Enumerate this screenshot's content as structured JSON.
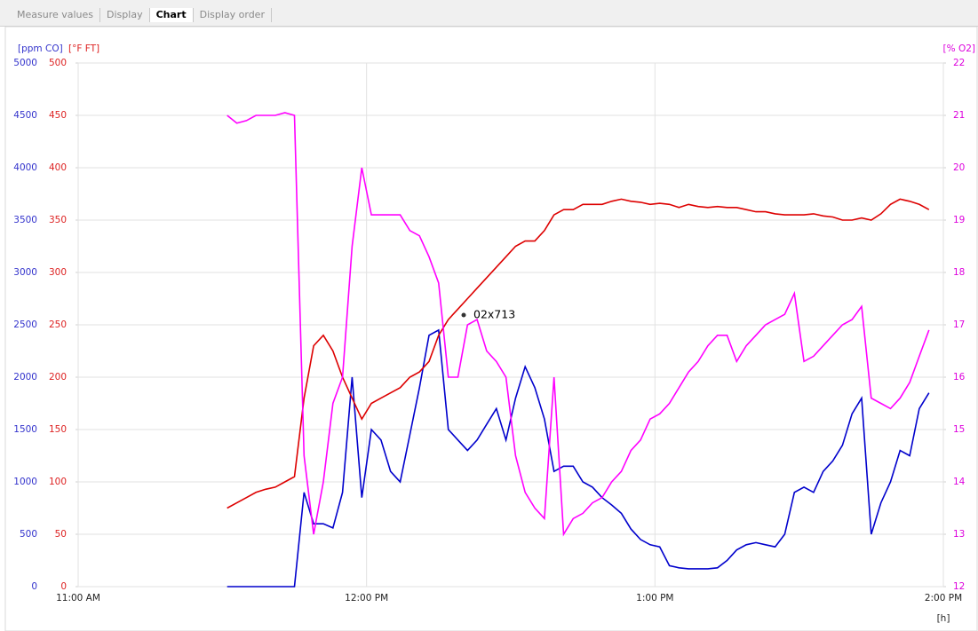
{
  "tabs": [
    {
      "label": "Measure values"
    },
    {
      "label": "Display"
    },
    {
      "label": "Chart",
      "active": true
    },
    {
      "label": "Display order"
    }
  ],
  "chart_data": {
    "type": "line",
    "ylabel": "[ppm CO]",
    "y2label": "[°F FT]",
    "y3label": "[% O2]",
    "xlabel": "[h]",
    "annotation": "02x713",
    "xlim": [
      "11:00 AM",
      "2:00 PM"
    ],
    "xticks": [
      "11:00 AM",
      "12:00 PM",
      "1:00 PM",
      "2:00 PM"
    ],
    "ylim": [
      0,
      5000
    ],
    "yticks": [
      0,
      500,
      1000,
      1500,
      2000,
      2500,
      3000,
      3500,
      4000,
      4500,
      5000
    ],
    "y2lim": [
      0,
      500
    ],
    "y2ticks": [
      0,
      50,
      100,
      150,
      200,
      250,
      300,
      350,
      400,
      450,
      500
    ],
    "y3lim": [
      12,
      22
    ],
    "y3ticks": [
      12,
      13,
      14,
      15,
      16,
      17,
      18,
      19,
      20,
      21,
      22
    ],
    "grid": true,
    "x": [
      "11:31 AM",
      "11:33 AM",
      "11:35 AM",
      "11:37 AM",
      "11:39 AM",
      "11:41 AM",
      "11:43 AM",
      "11:45 AM",
      "11:47 AM",
      "11:49 AM",
      "11:51 AM",
      "11:53 AM",
      "11:55 AM",
      "11:57 AM",
      "11:59 AM",
      "12:01 PM",
      "12:03 PM",
      "12:05 PM",
      "12:07 PM",
      "12:09 PM",
      "12:11 PM",
      "12:13 PM",
      "12:15 PM",
      "12:17 PM",
      "12:19 PM",
      "12:21 PM",
      "12:23 PM",
      "12:25 PM",
      "12:27 PM",
      "12:29 PM",
      "12:31 PM",
      "12:33 PM",
      "12:35 PM",
      "12:37 PM",
      "12:39 PM",
      "12:41 PM",
      "12:43 PM",
      "12:45 PM",
      "12:47 PM",
      "12:49 PM",
      "12:51 PM",
      "12:53 PM",
      "12:55 PM",
      "12:57 PM",
      "12:59 PM",
      "1:01 PM",
      "1:03 PM",
      "1:05 PM",
      "1:07 PM",
      "1:09 PM",
      "1:11 PM",
      "1:13 PM",
      "1:15 PM",
      "1:17 PM",
      "1:19 PM",
      "1:21 PM",
      "1:23 PM",
      "1:25 PM",
      "1:27 PM",
      "1:29 PM",
      "1:31 PM",
      "1:33 PM",
      "1:35 PM",
      "1:37 PM",
      "1:39 PM",
      "1:41 PM",
      "1:43 PM",
      "1:45 PM",
      "1:47 PM",
      "1:49 PM",
      "1:51 PM",
      "1:53 PM",
      "1:55 PM",
      "1:57 PM"
    ],
    "series": [
      {
        "axis": "y",
        "color": "#0000cc",
        "values": [
          0,
          0,
          0,
          0,
          0,
          0,
          0,
          0,
          900,
          600,
          600,
          560,
          900,
          2000,
          850,
          1500,
          1400,
          1100,
          1000,
          1450,
          1900,
          2400,
          2450,
          1500,
          1400,
          1300,
          1400,
          1550,
          1700,
          1400,
          1800,
          2100,
          1900,
          1600,
          1100,
          1150,
          1150,
          1000,
          950,
          850,
          780,
          700,
          550,
          450,
          400,
          380,
          200,
          180,
          170,
          170,
          170,
          180,
          250,
          350,
          400,
          420,
          400,
          380,
          500,
          900,
          950,
          900,
          1100,
          1200,
          1350,
          1650,
          1800,
          500,
          800,
          1000,
          1300,
          1250,
          1700,
          1850
        ]
      },
      {
        "axis": "y2",
        "color": "#dd0000",
        "values": [
          75,
          80,
          85,
          90,
          93,
          95,
          100,
          105,
          180,
          230,
          240,
          225,
          200,
          180,
          160,
          175,
          180,
          185,
          190,
          200,
          205,
          215,
          240,
          255,
          265,
          275,
          285,
          295,
          305,
          315,
          325,
          330,
          330,
          340,
          355,
          360,
          360,
          365,
          365,
          365,
          368,
          370,
          368,
          367,
          365,
          366,
          365,
          362,
          365,
          363,
          362,
          363,
          362,
          362,
          360,
          358,
          358,
          356,
          355,
          355,
          355,
          356,
          354,
          353,
          350,
          350,
          352,
          350,
          356,
          365,
          370,
          368,
          365,
          360
        ]
      },
      {
        "axis": "y3",
        "color": "#ff00ff",
        "values": [
          21.0,
          20.85,
          20.9,
          21.0,
          21.0,
          21.0,
          21.05,
          21.0,
          14.5,
          13.0,
          14.0,
          15.5,
          16.0,
          18.5,
          20.0,
          19.1,
          19.1,
          19.1,
          19.1,
          18.8,
          18.7,
          18.3,
          17.8,
          16.0,
          16.0,
          17.0,
          17.1,
          16.5,
          16.3,
          16.0,
          14.5,
          13.8,
          13.5,
          13.3,
          16.0,
          13.0,
          13.3,
          13.4,
          13.6,
          13.7,
          14.0,
          14.2,
          14.6,
          14.8,
          15.2,
          15.3,
          15.5,
          15.8,
          16.1,
          16.3,
          16.6,
          16.8,
          16.8,
          16.3,
          16.6,
          16.8,
          17.0,
          17.1,
          17.2,
          17.6,
          16.3,
          16.4,
          16.6,
          16.8,
          17.0,
          17.1,
          17.35,
          15.6,
          15.5,
          15.4,
          15.6,
          15.9,
          16.4,
          16.9
        ]
      }
    ]
  }
}
